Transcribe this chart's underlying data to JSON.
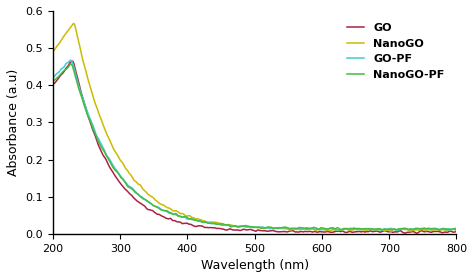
{
  "xlabel": "Wavelength (nm)",
  "ylabel": "Absorbance (a.u)",
  "xlim": [
    200,
    800
  ],
  "ylim": [
    0,
    0.6
  ],
  "xticks": [
    200,
    300,
    400,
    500,
    600,
    700,
    800
  ],
  "yticks": [
    0.0,
    0.1,
    0.2,
    0.3,
    0.4,
    0.5,
    0.6
  ],
  "legend": [
    "GO",
    "NanoGO",
    "GO-PF",
    "NanoGO-PF"
  ],
  "colors": [
    "#aa2244",
    "#ccbb00",
    "#44cccc",
    "#44bb44"
  ],
  "background_color": "#ffffff",
  "figsize": [
    4.74,
    2.79
  ],
  "dpi": 100
}
